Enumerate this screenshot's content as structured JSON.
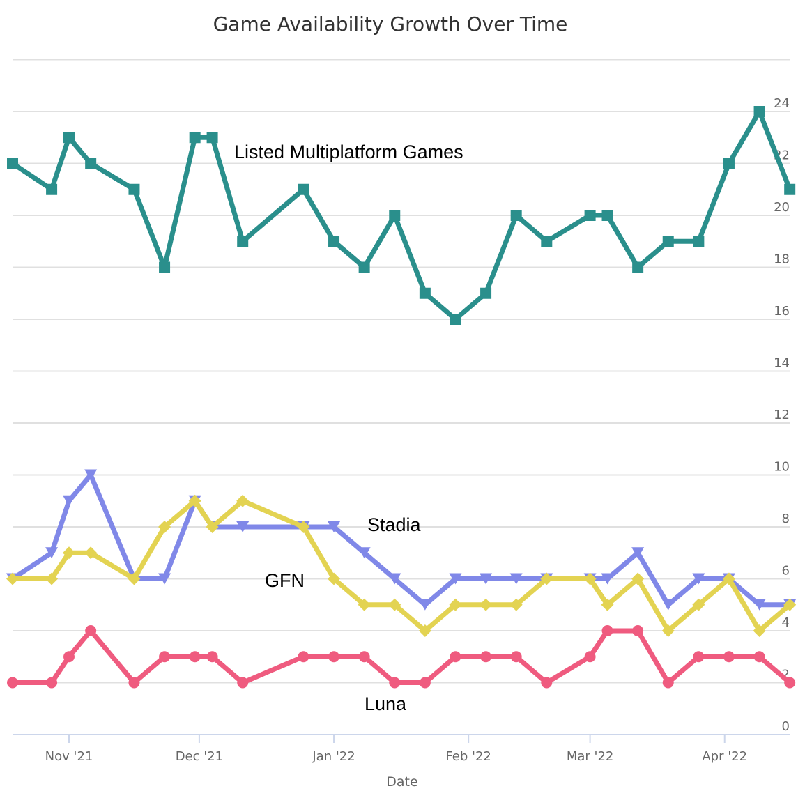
{
  "chart_data": {
    "type": "line",
    "title": "Game Availability Growth Over Time",
    "xlabel": "Date",
    "ylabel": "",
    "ylim": [
      0,
      26
    ],
    "yticks": [
      0,
      2,
      4,
      6,
      8,
      10,
      12,
      14,
      16,
      18,
      20,
      22,
      24
    ],
    "y_axis_side": "right",
    "grid": true,
    "legend": "none (inline labels)",
    "xticks": [
      {
        "date": "2021-11-01",
        "label": "Nov '21"
      },
      {
        "date": "2021-12-01",
        "label": "Dec '21"
      },
      {
        "date": "2022-01-01",
        "label": "Jan '22"
      },
      {
        "date": "2022-02-01",
        "label": "Feb '22"
      },
      {
        "date": "2022-03-01",
        "label": "Mar '22"
      },
      {
        "date": "2022-04-01",
        "label": "Apr '22"
      }
    ],
    "x": [
      "2021-10-19",
      "2021-10-28",
      "2021-11-01",
      "2021-11-06",
      "2021-11-16",
      "2021-11-23",
      "2021-11-30",
      "2021-12-04",
      "2021-12-11",
      "2021-12-25",
      "2022-01-01",
      "2022-01-08",
      "2022-01-15",
      "2022-01-22",
      "2022-01-29",
      "2022-02-05",
      "2022-02-12",
      "2022-02-19",
      "2022-03-01",
      "2022-03-05",
      "2022-03-12",
      "2022-03-19",
      "2022-03-26",
      "2022-04-02",
      "2022-04-09",
      "2022-04-16"
    ],
    "series": [
      {
        "name": "Listed Multiplatform Games",
        "color": "#2a8f8c",
        "marker": "square",
        "values": [
          22,
          21,
          23,
          22,
          21,
          18,
          23,
          23,
          19,
          21,
          19,
          18,
          20,
          17,
          16,
          17,
          20,
          19,
          20,
          20,
          18,
          19,
          19,
          22,
          24,
          21
        ]
      },
      {
        "name": "Stadia",
        "color": "#8088e8",
        "marker": "triangle-down",
        "values": [
          6,
          7,
          9,
          10,
          6,
          6,
          9,
          8,
          8,
          8,
          8,
          7,
          6,
          5,
          6,
          6,
          6,
          6,
          6,
          6,
          7,
          5,
          6,
          6,
          5,
          5
        ]
      },
      {
        "name": "GFN",
        "color": "#e3d352",
        "marker": "diamond",
        "values": [
          6,
          6,
          7,
          7,
          6,
          8,
          9,
          8,
          9,
          8,
          6,
          5,
          5,
          4,
          5,
          5,
          5,
          6,
          6,
          5,
          6,
          4,
          5,
          6,
          4,
          5
        ]
      },
      {
        "name": "Luna",
        "color": "#ef5b7f",
        "marker": "circle",
        "values": [
          2,
          2,
          3,
          4,
          2,
          3,
          3,
          3,
          2,
          3,
          3,
          3,
          2,
          2,
          3,
          3,
          3,
          2,
          3,
          4,
          4,
          2,
          3,
          3,
          3,
          2
        ]
      }
    ],
    "annotations": [
      {
        "series": "Listed Multiplatform Games",
        "text": "Listed Multiplatform Games"
      },
      {
        "series": "Stadia",
        "text": "Stadia"
      },
      {
        "series": "GFN",
        "text": "GFN"
      },
      {
        "series": "Luna",
        "text": "Luna"
      }
    ]
  }
}
